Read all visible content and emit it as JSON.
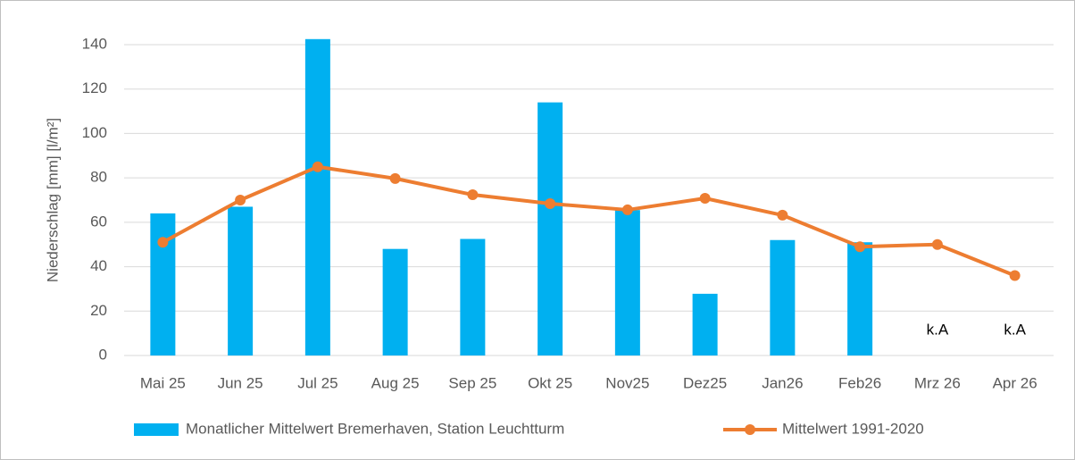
{
  "chart_data": {
    "type": "bar-line",
    "y_label": "Niederschlag [mm] [l/m²]",
    "categories": [
      "Mai 25",
      "Jun 25",
      "Jul 25",
      "Aug 25",
      "Sep 25",
      "Okt 25",
      "Nov25",
      "Dez25",
      "Jan26",
      "Feb26",
      "Mrz 26",
      "Apr 26"
    ],
    "series": [
      {
        "name": "Monatlicher Mittelwert Bremerhaven, Station Leuchtturm",
        "type": "bar",
        "color": "#00b0f0",
        "values": [
          64,
          67,
          142.5,
          48,
          52.5,
          114,
          65.5,
          27.8,
          52,
          51,
          null,
          null
        ],
        "value_labels": [
          null,
          null,
          null,
          null,
          null,
          null,
          null,
          null,
          null,
          null,
          "k.A",
          "k.A"
        ]
      },
      {
        "name": "Mittelwert 1991-2020",
        "type": "line",
        "color": "#ed7d31",
        "values": [
          51,
          70,
          85,
          79.7,
          72.4,
          68.4,
          65.6,
          70.8,
          63.2,
          49,
          50,
          36
        ]
      }
    ],
    "ylim": [
      0,
      140
    ],
    "yticks": [
      0,
      20,
      40,
      60,
      80,
      100,
      120,
      140
    ],
    "grid": true,
    "legend": "bottom"
  }
}
